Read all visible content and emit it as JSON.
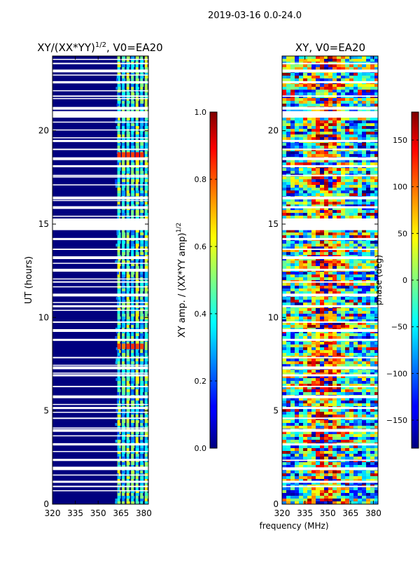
{
  "suptitle": "2019-03-16 0.0-24.0",
  "chart_data": [
    {
      "type": "heatmap",
      "title_main": "XY/(XX*YY)",
      "title_exp": "1/2",
      "title_suffix": ", V0=EA20",
      "ylabel": "UT (hours)",
      "xlabel": "",
      "x_ticks": [
        320,
        335,
        350,
        365,
        380
      ],
      "y_ticks": [
        0,
        5,
        10,
        15,
        20
      ],
      "xlim": [
        320,
        383
      ],
      "ylim": [
        0,
        24
      ],
      "colormap": "jet",
      "colorbar": {
        "label_main": "XY amp. / (XX*YY amp)",
        "label_exp": "1/2",
        "range": [
          0.0,
          1.0
        ],
        "ticks": [
          "0.0",
          "0.2",
          "0.4",
          "0.6",
          "0.8",
          "1.0"
        ],
        "tick_values": [
          0.0,
          0.2,
          0.4,
          0.6,
          0.8,
          1.0
        ]
      }
    },
    {
      "type": "heatmap",
      "title_main": "XY, V0=EA20",
      "ylabel": "",
      "xlabel": "frequency (MHz)",
      "x_ticks": [
        320,
        335,
        350,
        365,
        380
      ],
      "y_ticks": [
        0,
        5,
        10,
        15,
        20
      ],
      "xlim": [
        320,
        383
      ],
      "ylim": [
        0,
        24
      ],
      "colormap": "jet",
      "colorbar": {
        "label_main": "phase (deg)",
        "range": [
          -180,
          180
        ],
        "ticks": [
          "150",
          "100",
          "50",
          "0",
          "−50",
          "−100",
          "−150"
        ],
        "tick_values": [
          150,
          100,
          50,
          0,
          -50,
          -100,
          -150
        ]
      }
    }
  ],
  "flagged_hours": [
    0.95,
    1.2,
    1.9,
    2.35,
    3.2,
    3.95,
    4.6,
    5.15,
    5.75,
    6.3,
    6.9,
    7.3,
    7.85,
    8.8,
    9.3,
    9.75,
    10.6,
    11.2,
    11.9,
    12.55,
    13.2,
    13.65,
    14.2,
    14.75,
    15.2,
    15.9,
    16.4,
    17.6,
    18.1,
    18.5,
    19.0,
    19.45,
    21.2,
    21.85,
    22.6,
    23.2,
    23.6
  ],
  "flagged_blocks": [
    [
      20.7,
      21.05
    ],
    [
      14.7,
      15.3
    ]
  ]
}
